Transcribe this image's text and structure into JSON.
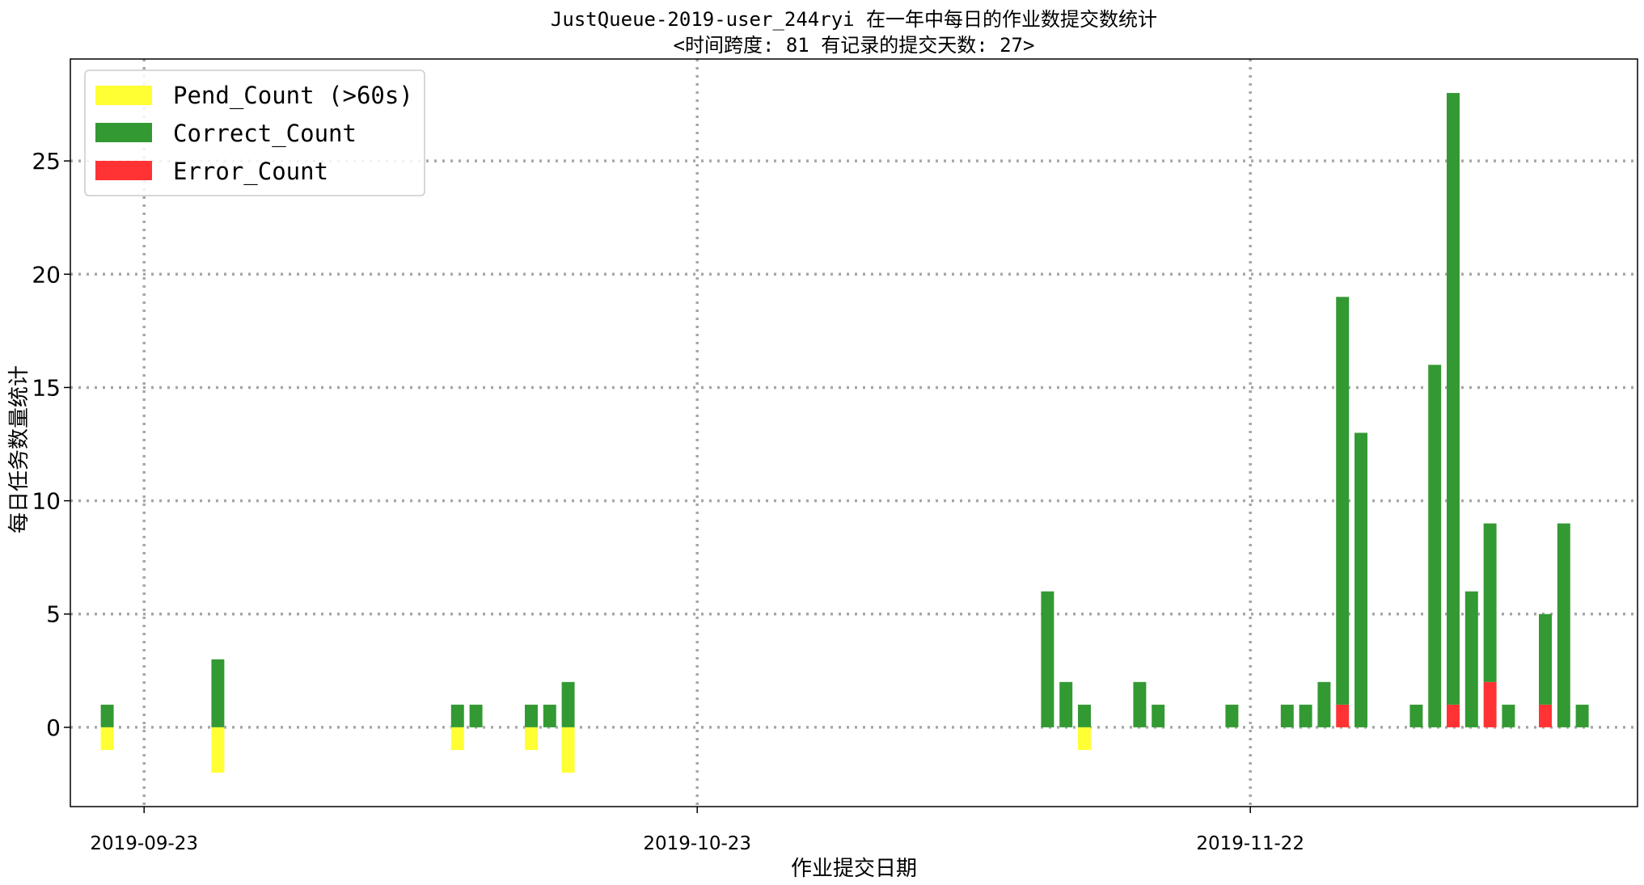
{
  "chart_data": {
    "type": "bar",
    "title": "JustQueue-2019-user_244ryi 在一年中每日的作业数提交数统计",
    "subtitle": "<时间跨度: 81  有记录的提交天数: 27>",
    "xlabel": "作业提交日期",
    "ylabel": "每日任务数量统计",
    "x_type": "date",
    "x_range": [
      "2019-09-19",
      "2019-12-13"
    ],
    "ylim": [
      -3.5,
      29.5
    ],
    "yticks": [
      0,
      5,
      10,
      15,
      20,
      25
    ],
    "xticks": [
      "2019-09-23",
      "2019-10-23",
      "2019-11-22"
    ],
    "grid": true,
    "legend_position": "top-left",
    "series": [
      {
        "name": "Pend_Count (>60s)",
        "color": "#ffff33",
        "direction": "down"
      },
      {
        "name": "Correct_Count",
        "color": "#339933"
      },
      {
        "name": "Error_Count",
        "color": "#ff3333"
      }
    ],
    "days": [
      {
        "date": "2019-09-21",
        "correct": 1,
        "error": 0,
        "pend": 1
      },
      {
        "date": "2019-09-27",
        "correct": 3,
        "error": 0,
        "pend": 2
      },
      {
        "date": "2019-10-10",
        "correct": 1,
        "error": 0,
        "pend": 1
      },
      {
        "date": "2019-10-11",
        "correct": 1,
        "error": 0,
        "pend": 0
      },
      {
        "date": "2019-10-14",
        "correct": 1,
        "error": 0,
        "pend": 1
      },
      {
        "date": "2019-10-15",
        "correct": 1,
        "error": 0,
        "pend": 0
      },
      {
        "date": "2019-10-16",
        "correct": 2,
        "error": 0,
        "pend": 2
      },
      {
        "date": "2019-11-11",
        "correct": 6,
        "error": 0,
        "pend": 0
      },
      {
        "date": "2019-11-12",
        "correct": 2,
        "error": 0,
        "pend": 0
      },
      {
        "date": "2019-11-13",
        "correct": 1,
        "error": 0,
        "pend": 1
      },
      {
        "date": "2019-11-16",
        "correct": 2,
        "error": 0,
        "pend": 0
      },
      {
        "date": "2019-11-17",
        "correct": 1,
        "error": 0,
        "pend": 0
      },
      {
        "date": "2019-11-21",
        "correct": 1,
        "error": 0,
        "pend": 0
      },
      {
        "date": "2019-11-24",
        "correct": 1,
        "error": 0,
        "pend": 0
      },
      {
        "date": "2019-11-25",
        "correct": 1,
        "error": 0,
        "pend": 0
      },
      {
        "date": "2019-11-26",
        "correct": 2,
        "error": 0,
        "pend": 0
      },
      {
        "date": "2019-11-27",
        "correct": 18,
        "error": 1,
        "pend": 0
      },
      {
        "date": "2019-11-28",
        "correct": 13,
        "error": 0,
        "pend": 0
      },
      {
        "date": "2019-12-01",
        "correct": 1,
        "error": 0,
        "pend": 0
      },
      {
        "date": "2019-12-02",
        "correct": 16,
        "error": 0,
        "pend": 0
      },
      {
        "date": "2019-12-03",
        "correct": 27,
        "error": 1,
        "pend": 0
      },
      {
        "date": "2019-12-04",
        "correct": 6,
        "error": 0,
        "pend": 0
      },
      {
        "date": "2019-12-05",
        "correct": 7,
        "error": 2,
        "pend": 0
      },
      {
        "date": "2019-12-06",
        "correct": 1,
        "error": 0,
        "pend": 0
      },
      {
        "date": "2019-12-08",
        "correct": 4,
        "error": 1,
        "pend": 0
      },
      {
        "date": "2019-12-09",
        "correct": 9,
        "error": 0,
        "pend": 0
      },
      {
        "date": "2019-12-10",
        "correct": 1,
        "error": 0,
        "pend": 0
      }
    ]
  }
}
